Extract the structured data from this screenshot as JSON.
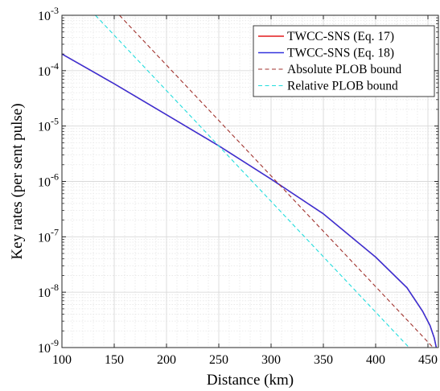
{
  "chart_data": {
    "type": "line",
    "xlabel": "Distance (km)",
    "ylabel": "Key rates (per sent pulse)",
    "xlim": [
      100,
      460
    ],
    "ylim": [
      1e-09,
      0.001
    ],
    "y_scale": "log",
    "grid": true,
    "minor_grid": true,
    "legend_position": "top-right",
    "x_ticks": [
      100,
      150,
      200,
      250,
      300,
      350,
      400,
      450
    ],
    "y_tick_exponents": [
      -9,
      -8,
      -7,
      -6,
      -5,
      -4,
      -3
    ],
    "y_tick_base": "10",
    "series": [
      {
        "name": "TWCC-SNS (Eq. 17)",
        "color": "#e41a1c",
        "style": "solid",
        "x": [
          100,
          150,
          200,
          250,
          300,
          350,
          400,
          430,
          445,
          452,
          456,
          458
        ],
        "y": [
          0.0002,
          5.8e-05,
          1.6e-05,
          4.4e-06,
          1.1e-06,
          2.6e-07,
          4.3e-08,
          1.2e-08,
          4.5e-09,
          2.5e-09,
          1.5e-09,
          1e-09
        ]
      },
      {
        "name": "TWCC-SNS (Eq. 18)",
        "color": "#3333dd",
        "style": "solid",
        "x": [
          100,
          150,
          200,
          250,
          300,
          350,
          400,
          430,
          445,
          452,
          456,
          458
        ],
        "y": [
          0.0002,
          5.8e-05,
          1.6e-05,
          4.4e-06,
          1.1e-06,
          2.6e-07,
          4.3e-08,
          1.2e-08,
          4.5e-09,
          2.5e-09,
          1.5e-09,
          1e-09
        ]
      },
      {
        "name": "Absolute PLOB bound",
        "color": "#a0322d",
        "style": "dashed",
        "x": [
          155,
          455
        ],
        "y": [
          0.001,
          1e-09
        ]
      },
      {
        "name": "Relative PLOB bound",
        "color": "#22dddd",
        "style": "dashed",
        "x": [
          132,
          432
        ],
        "y": [
          0.001,
          1e-09
        ]
      }
    ]
  }
}
